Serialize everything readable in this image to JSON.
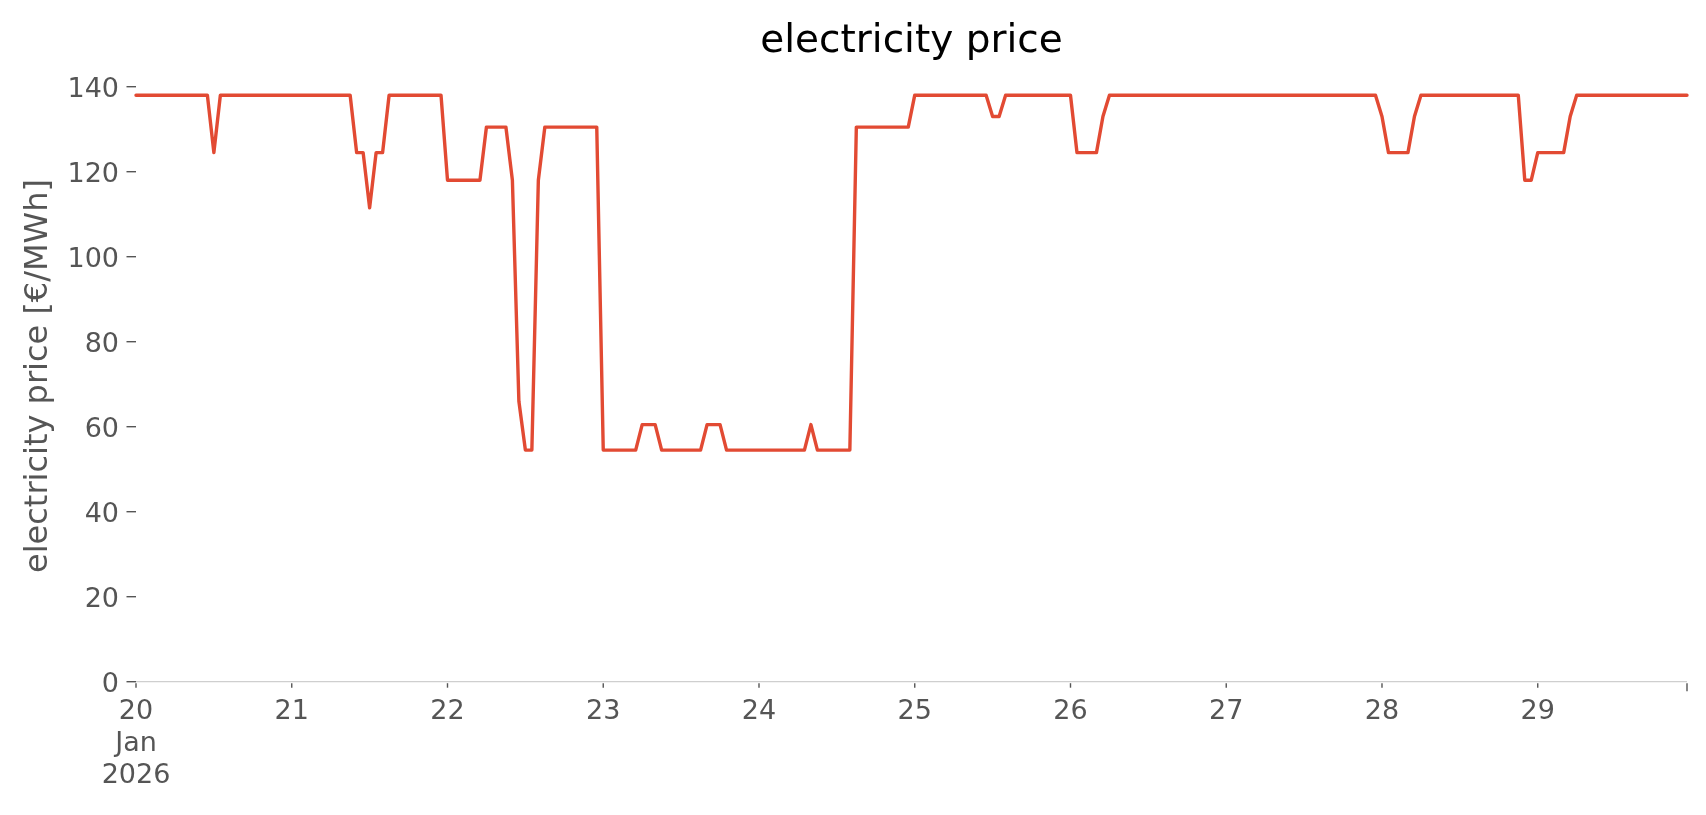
{
  "chart_data": {
    "type": "line",
    "title": "electricity price",
    "ylabel": "electricity price [€/MWh]",
    "x": [
      "2026-01-20T00:00",
      "2026-01-20T11:00",
      "2026-01-20T12:00",
      "2026-01-20T13:00",
      "2026-01-21T09:00",
      "2026-01-21T10:00",
      "2026-01-21T11:00",
      "2026-01-21T12:00",
      "2026-01-21T13:00",
      "2026-01-21T14:00",
      "2026-01-21T15:00",
      "2026-01-21T23:00",
      "2026-01-22T00:00",
      "2026-01-22T05:00",
      "2026-01-22T06:00",
      "2026-01-22T09:00",
      "2026-01-22T10:00",
      "2026-01-22T11:00",
      "2026-01-22T12:00",
      "2026-01-22T13:00",
      "2026-01-22T14:00",
      "2026-01-22T15:00",
      "2026-01-22T23:00",
      "2026-01-23T00:00",
      "2026-01-23T05:00",
      "2026-01-23T06:00",
      "2026-01-23T08:00",
      "2026-01-23T09:00",
      "2026-01-23T15:00",
      "2026-01-23T16:00",
      "2026-01-23T18:00",
      "2026-01-23T19:00",
      "2026-01-24T07:00",
      "2026-01-24T08:00",
      "2026-01-24T09:00",
      "2026-01-24T14:00",
      "2026-01-24T15:00",
      "2026-01-24T23:00",
      "2026-01-25T00:00",
      "2026-01-25T11:00",
      "2026-01-25T12:00",
      "2026-01-25T13:00",
      "2026-01-25T14:00",
      "2026-01-26T00:00",
      "2026-01-26T01:00",
      "2026-01-26T04:00",
      "2026-01-26T05:00",
      "2026-01-26T06:00",
      "2026-01-27T23:00",
      "2026-01-28T00:00",
      "2026-01-28T01:00",
      "2026-01-28T04:00",
      "2026-01-28T05:00",
      "2026-01-28T06:00",
      "2026-01-28T21:00",
      "2026-01-28T22:00",
      "2026-01-28T23:00",
      "2026-01-29T00:00",
      "2026-01-29T04:00",
      "2026-01-29T05:00",
      "2026-01-29T06:00",
      "2026-01-29T23:00"
    ],
    "values": [
      138,
      138,
      124.5,
      138,
      138,
      124.5,
      124.5,
      111.5,
      124.5,
      124.5,
      138,
      138,
      118,
      118,
      130.5,
      130.5,
      118,
      66,
      54.5,
      54.5,
      118,
      130.5,
      130.5,
      54.5,
      54.5,
      60.5,
      60.5,
      54.5,
      54.5,
      60.5,
      60.5,
      54.5,
      54.5,
      60.5,
      54.5,
      54.5,
      130.5,
      130.5,
      138,
      138,
      133,
      133,
      138,
      138,
      124.5,
      124.5,
      133,
      138,
      138,
      133,
      124.5,
      124.5,
      133,
      138,
      138,
      118,
      118,
      124.5,
      124.5,
      133,
      138,
      138
    ],
    "color": "#e24a33",
    "xlim": [
      "2026-01-20T00:00",
      "2026-01-29T23:00"
    ],
    "ylim": [
      0,
      140
    ],
    "xticks": [
      {
        "value": "2026-01-20",
        "label": "20\nJan\n2026"
      },
      {
        "value": "2026-01-21",
        "label": "21"
      },
      {
        "value": "2026-01-22",
        "label": "22"
      },
      {
        "value": "2026-01-23",
        "label": "23"
      },
      {
        "value": "2026-01-24",
        "label": "24"
      },
      {
        "value": "2026-01-25",
        "label": "25"
      },
      {
        "value": "2026-01-26",
        "label": "26"
      },
      {
        "value": "2026-01-27",
        "label": "27"
      },
      {
        "value": "2026-01-28",
        "label": "28"
      },
      {
        "value": "2026-01-29",
        "label": "29"
      },
      {
        "value": "2026-01-29T23:00",
        "label": null
      }
    ],
    "yticks": [
      0,
      20,
      40,
      60,
      80,
      100,
      120,
      140
    ]
  }
}
